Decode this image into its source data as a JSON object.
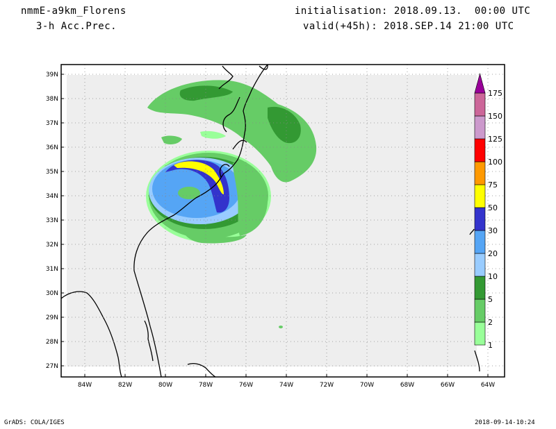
{
  "header": {
    "model": "nmmE-a9km_Florens",
    "variable": "3-h Acc.Prec.",
    "init": "initialisation: 2018.09.13.  00:00 UTC",
    "valid": "valid(+45h): 2018.SEP.14 21:00 UTC"
  },
  "footer": {
    "software": "GrADS: COLA/IGES",
    "timestamp": "2018-09-14-10:24"
  },
  "map": {
    "lat_labels": [
      "39N",
      "38N",
      "37N",
      "36N",
      "35N",
      "34N",
      "33N",
      "32N",
      "31N",
      "30N",
      "29N",
      "28N",
      "27N"
    ],
    "lon_labels": [
      "84W",
      "82W",
      "80W",
      "78W",
      "76W",
      "74W",
      "72W",
      "70W",
      "68W",
      "66W",
      "64W"
    ],
    "gridlines": true,
    "domain_color": "#eeeeee",
    "coast_color": "#000000"
  },
  "colorbar": {
    "levels": [
      {
        "label": "1",
        "color": "#99ff99"
      },
      {
        "label": "2",
        "color": "#66cc66"
      },
      {
        "label": "5",
        "color": "#339933"
      },
      {
        "label": "10",
        "color": "#99ccff"
      },
      {
        "label": "20",
        "color": "#55a5f5"
      },
      {
        "label": "30",
        "color": "#3333cc"
      },
      {
        "label": "50",
        "color": "#ffff00"
      },
      {
        "label": "75",
        "color": "#ff9900"
      },
      {
        "label": "100",
        "color": "#ff0000"
      },
      {
        "label": "125",
        "color": "#cc99cc"
      },
      {
        "label": "150",
        "color": "#cc6699"
      },
      {
        "label": "175",
        "color": "#990099"
      }
    ]
  }
}
